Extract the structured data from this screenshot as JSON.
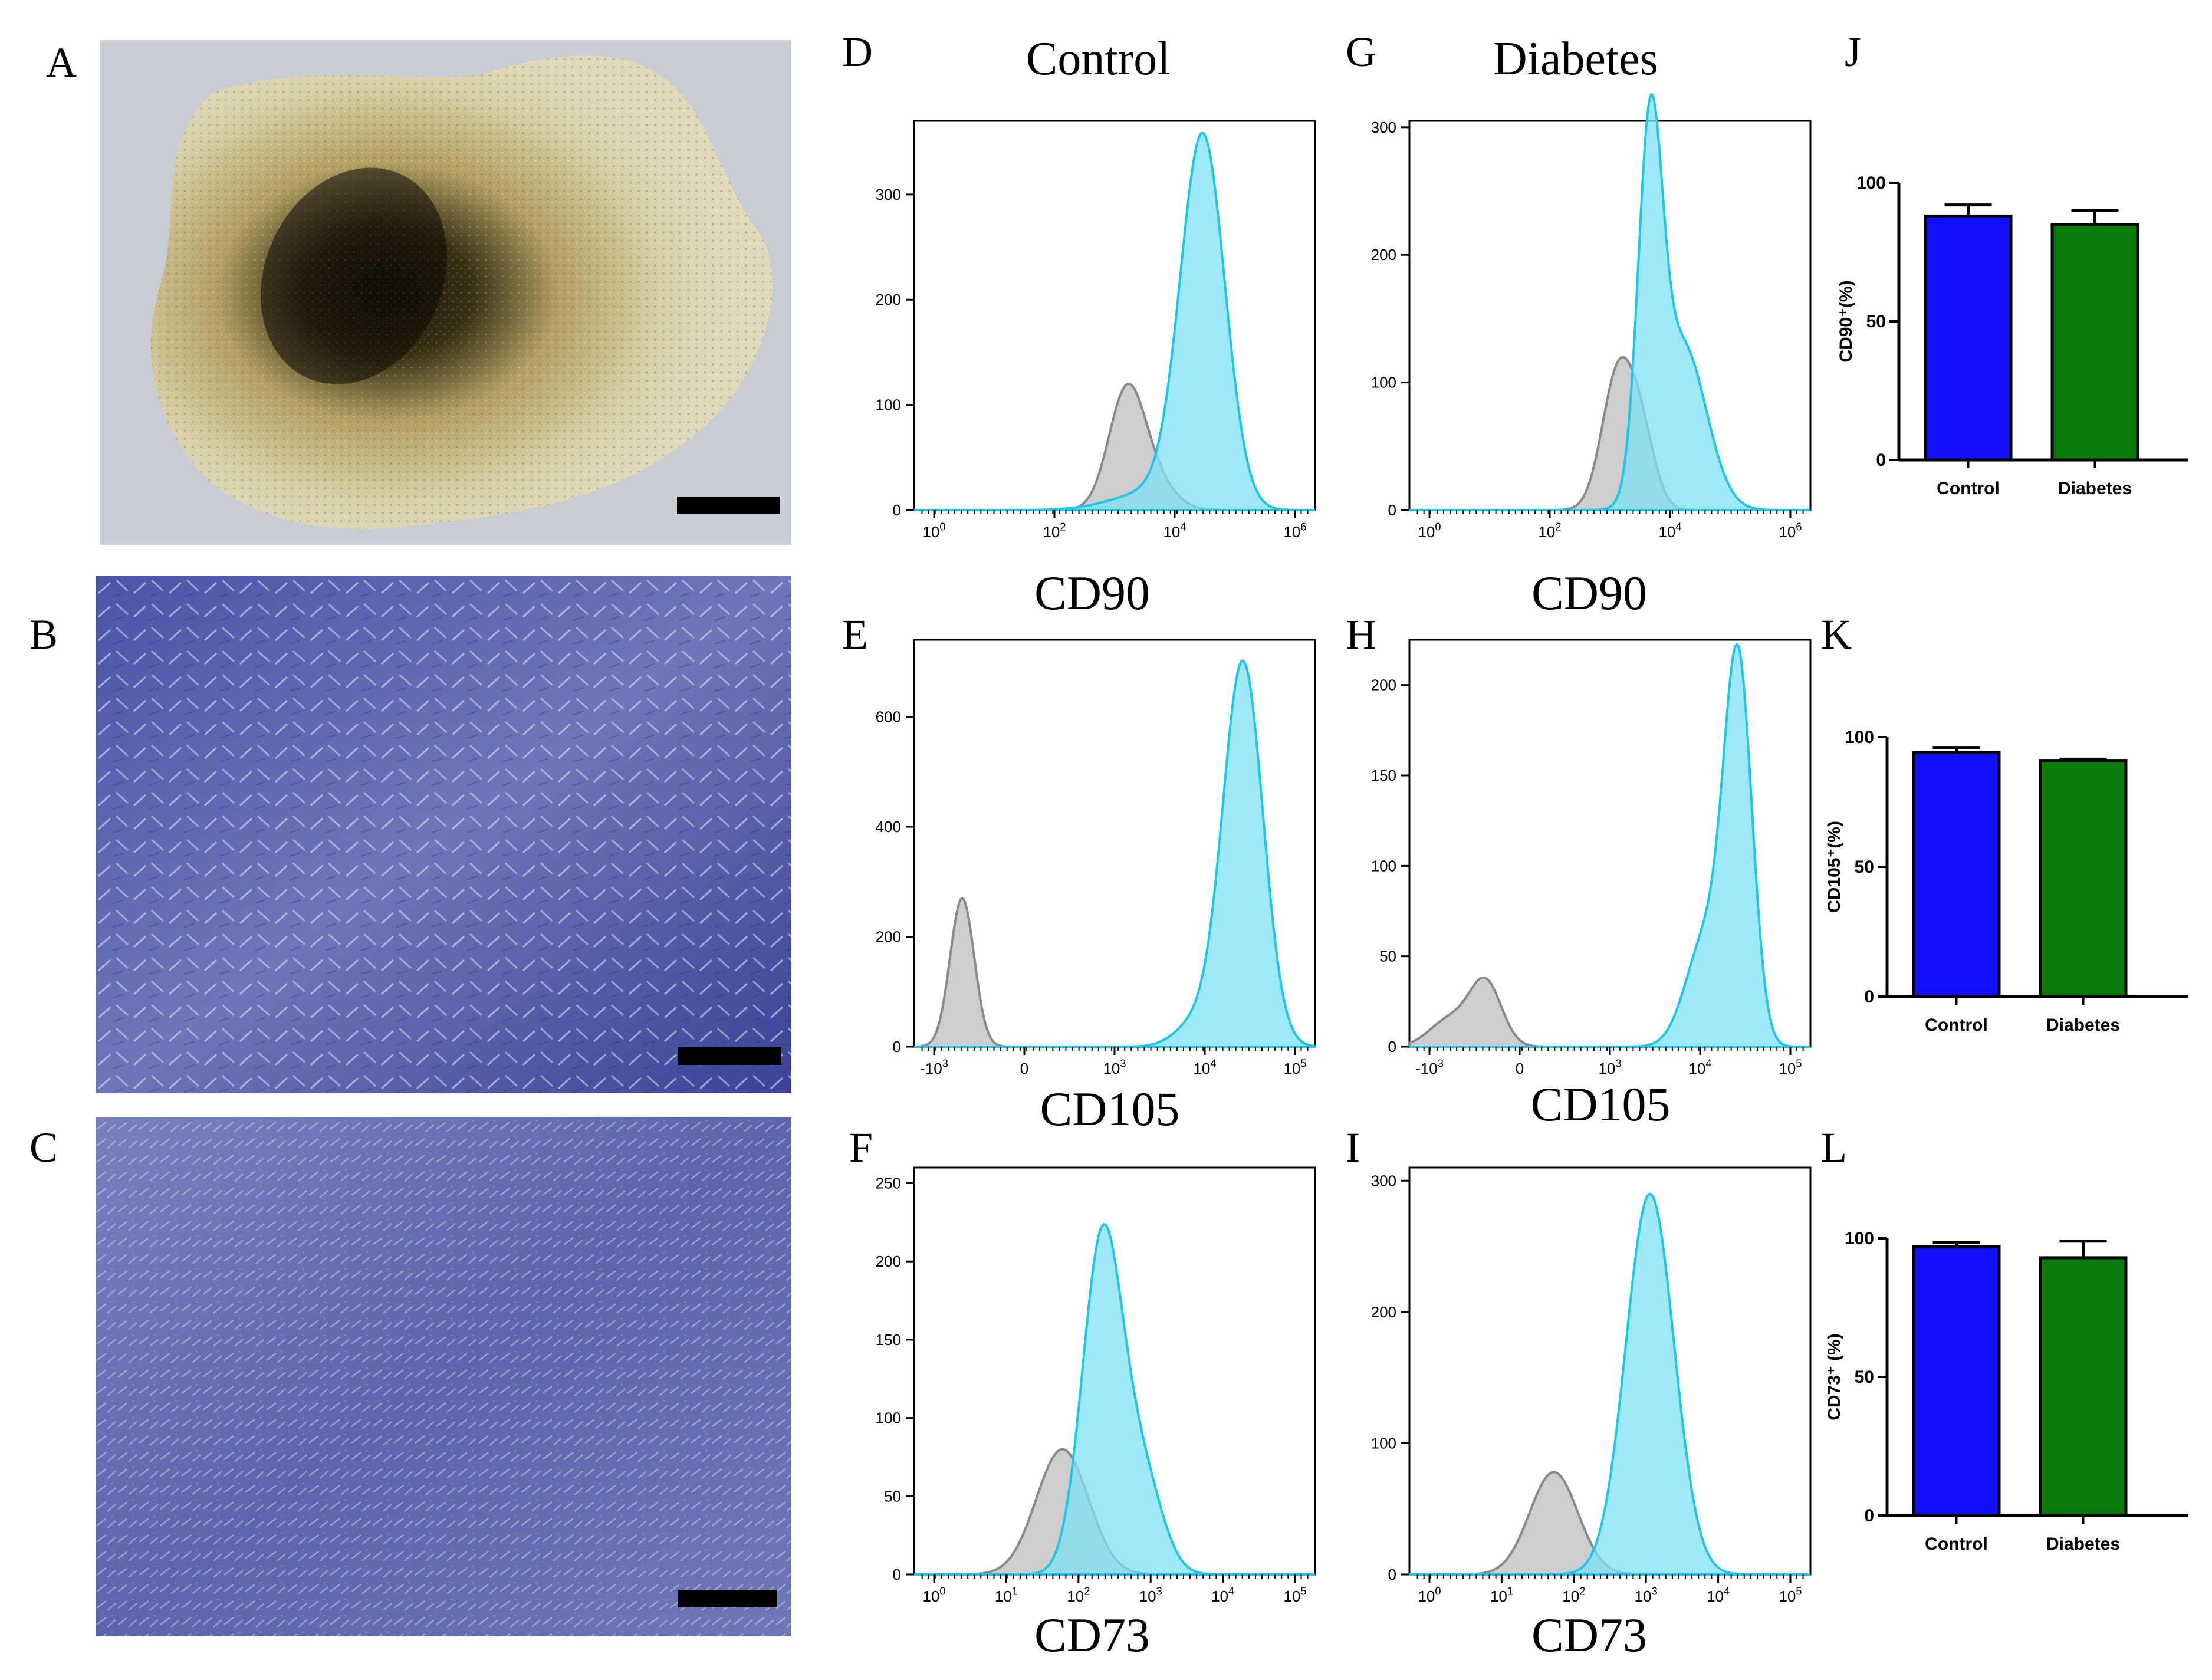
{
  "column_titles": {
    "control": "Control",
    "diabetes": "Diabetes"
  },
  "panel_labels": [
    "A",
    "B",
    "C",
    "D",
    "E",
    "F",
    "G",
    "H",
    "I",
    "J",
    "K",
    "L"
  ],
  "micrographs": {
    "A": {
      "description_icon": "tissue-explant-micrograph"
    },
    "B": {
      "description_icon": "cell-culture-micrograph"
    },
    "C": {
      "description_icon": "confluent-cell-culture-micrograph"
    }
  },
  "colors": {
    "positive_fill": "#7fe0f6",
    "positive_stroke": "#1ec6ea",
    "isotype_fill": "#bdbdbd",
    "isotype_stroke": "#8a8a8a",
    "control_bar": "#1010ff",
    "diabetes_bar": "#0a7a0a"
  },
  "histograms": {
    "D": {
      "marker": "CD90",
      "group": "Control",
      "y_ticks": [
        "0",
        "100",
        "200",
        "300"
      ],
      "x_ticks": [
        "10^0",
        "10^2",
        "10^4",
        "10^6"
      ],
      "x_scale": "log",
      "y_max": 370
    },
    "G": {
      "marker": "CD90",
      "group": "Diabetes",
      "y_ticks": [
        "0",
        "100",
        "200",
        "300"
      ],
      "x_ticks": [
        "10^0",
        "10^2",
        "10^4",
        "10^6"
      ],
      "x_scale": "log",
      "y_max": 305
    },
    "E": {
      "marker": "CD105",
      "group": "Control",
      "y_ticks": [
        "0",
        "200",
        "400",
        "600"
      ],
      "x_ticks": [
        "-10^3",
        "0",
        "10^3",
        "10^4",
        "10^5"
      ],
      "x_scale": "biexponential",
      "y_max": 740
    },
    "H": {
      "marker": "CD105",
      "group": "Diabetes",
      "y_ticks": [
        "0",
        "50",
        "100",
        "150",
        "200"
      ],
      "x_ticks": [
        "-10^3",
        "0",
        "10^3",
        "10^4",
        "10^5"
      ],
      "x_scale": "biexponential",
      "y_max": 225
    },
    "F": {
      "marker": "CD73",
      "group": "Control",
      "y_ticks": [
        "0",
        "50",
        "100",
        "150",
        "200",
        "250"
      ],
      "x_ticks": [
        "10^0",
        "10^1",
        "10^2",
        "10^3",
        "10^4",
        "10^5"
      ],
      "x_scale": "log",
      "y_max": 260
    },
    "I": {
      "marker": "CD73",
      "group": "Diabetes",
      "y_ticks": [
        "0",
        "100",
        "200",
        "300"
      ],
      "x_ticks": [
        "10^0",
        "10^1",
        "10^2",
        "10^3",
        "10^4",
        "10^5"
      ],
      "x_scale": "log",
      "y_max": 310
    }
  },
  "chart_data": [
    {
      "panel": "J",
      "type": "bar",
      "categories": [
        "Control",
        "Diabetes"
      ],
      "values": [
        88,
        85
      ],
      "errors": [
        4,
        5
      ],
      "ylabel": "CD90⁺(%)",
      "ylim": [
        0,
        100
      ],
      "y_ticks": [
        "0",
        "50",
        "100"
      ]
    },
    {
      "panel": "K",
      "type": "bar",
      "categories": [
        "Control",
        "Diabetes"
      ],
      "values": [
        94,
        91
      ],
      "errors": [
        2,
        0.5
      ],
      "ylabel": "CD105⁺(%)",
      "ylim": [
        0,
        100
      ],
      "y_ticks": [
        "0",
        "50",
        "100"
      ]
    },
    {
      "panel": "L",
      "type": "bar",
      "categories": [
        "Control",
        "Diabetes"
      ],
      "values": [
        97,
        93
      ],
      "errors": [
        1.5,
        6
      ],
      "ylabel": "CD73⁺ (%)",
      "ylim": [
        0,
        100
      ],
      "y_ticks": [
        "0",
        "50",
        "100"
      ]
    }
  ]
}
